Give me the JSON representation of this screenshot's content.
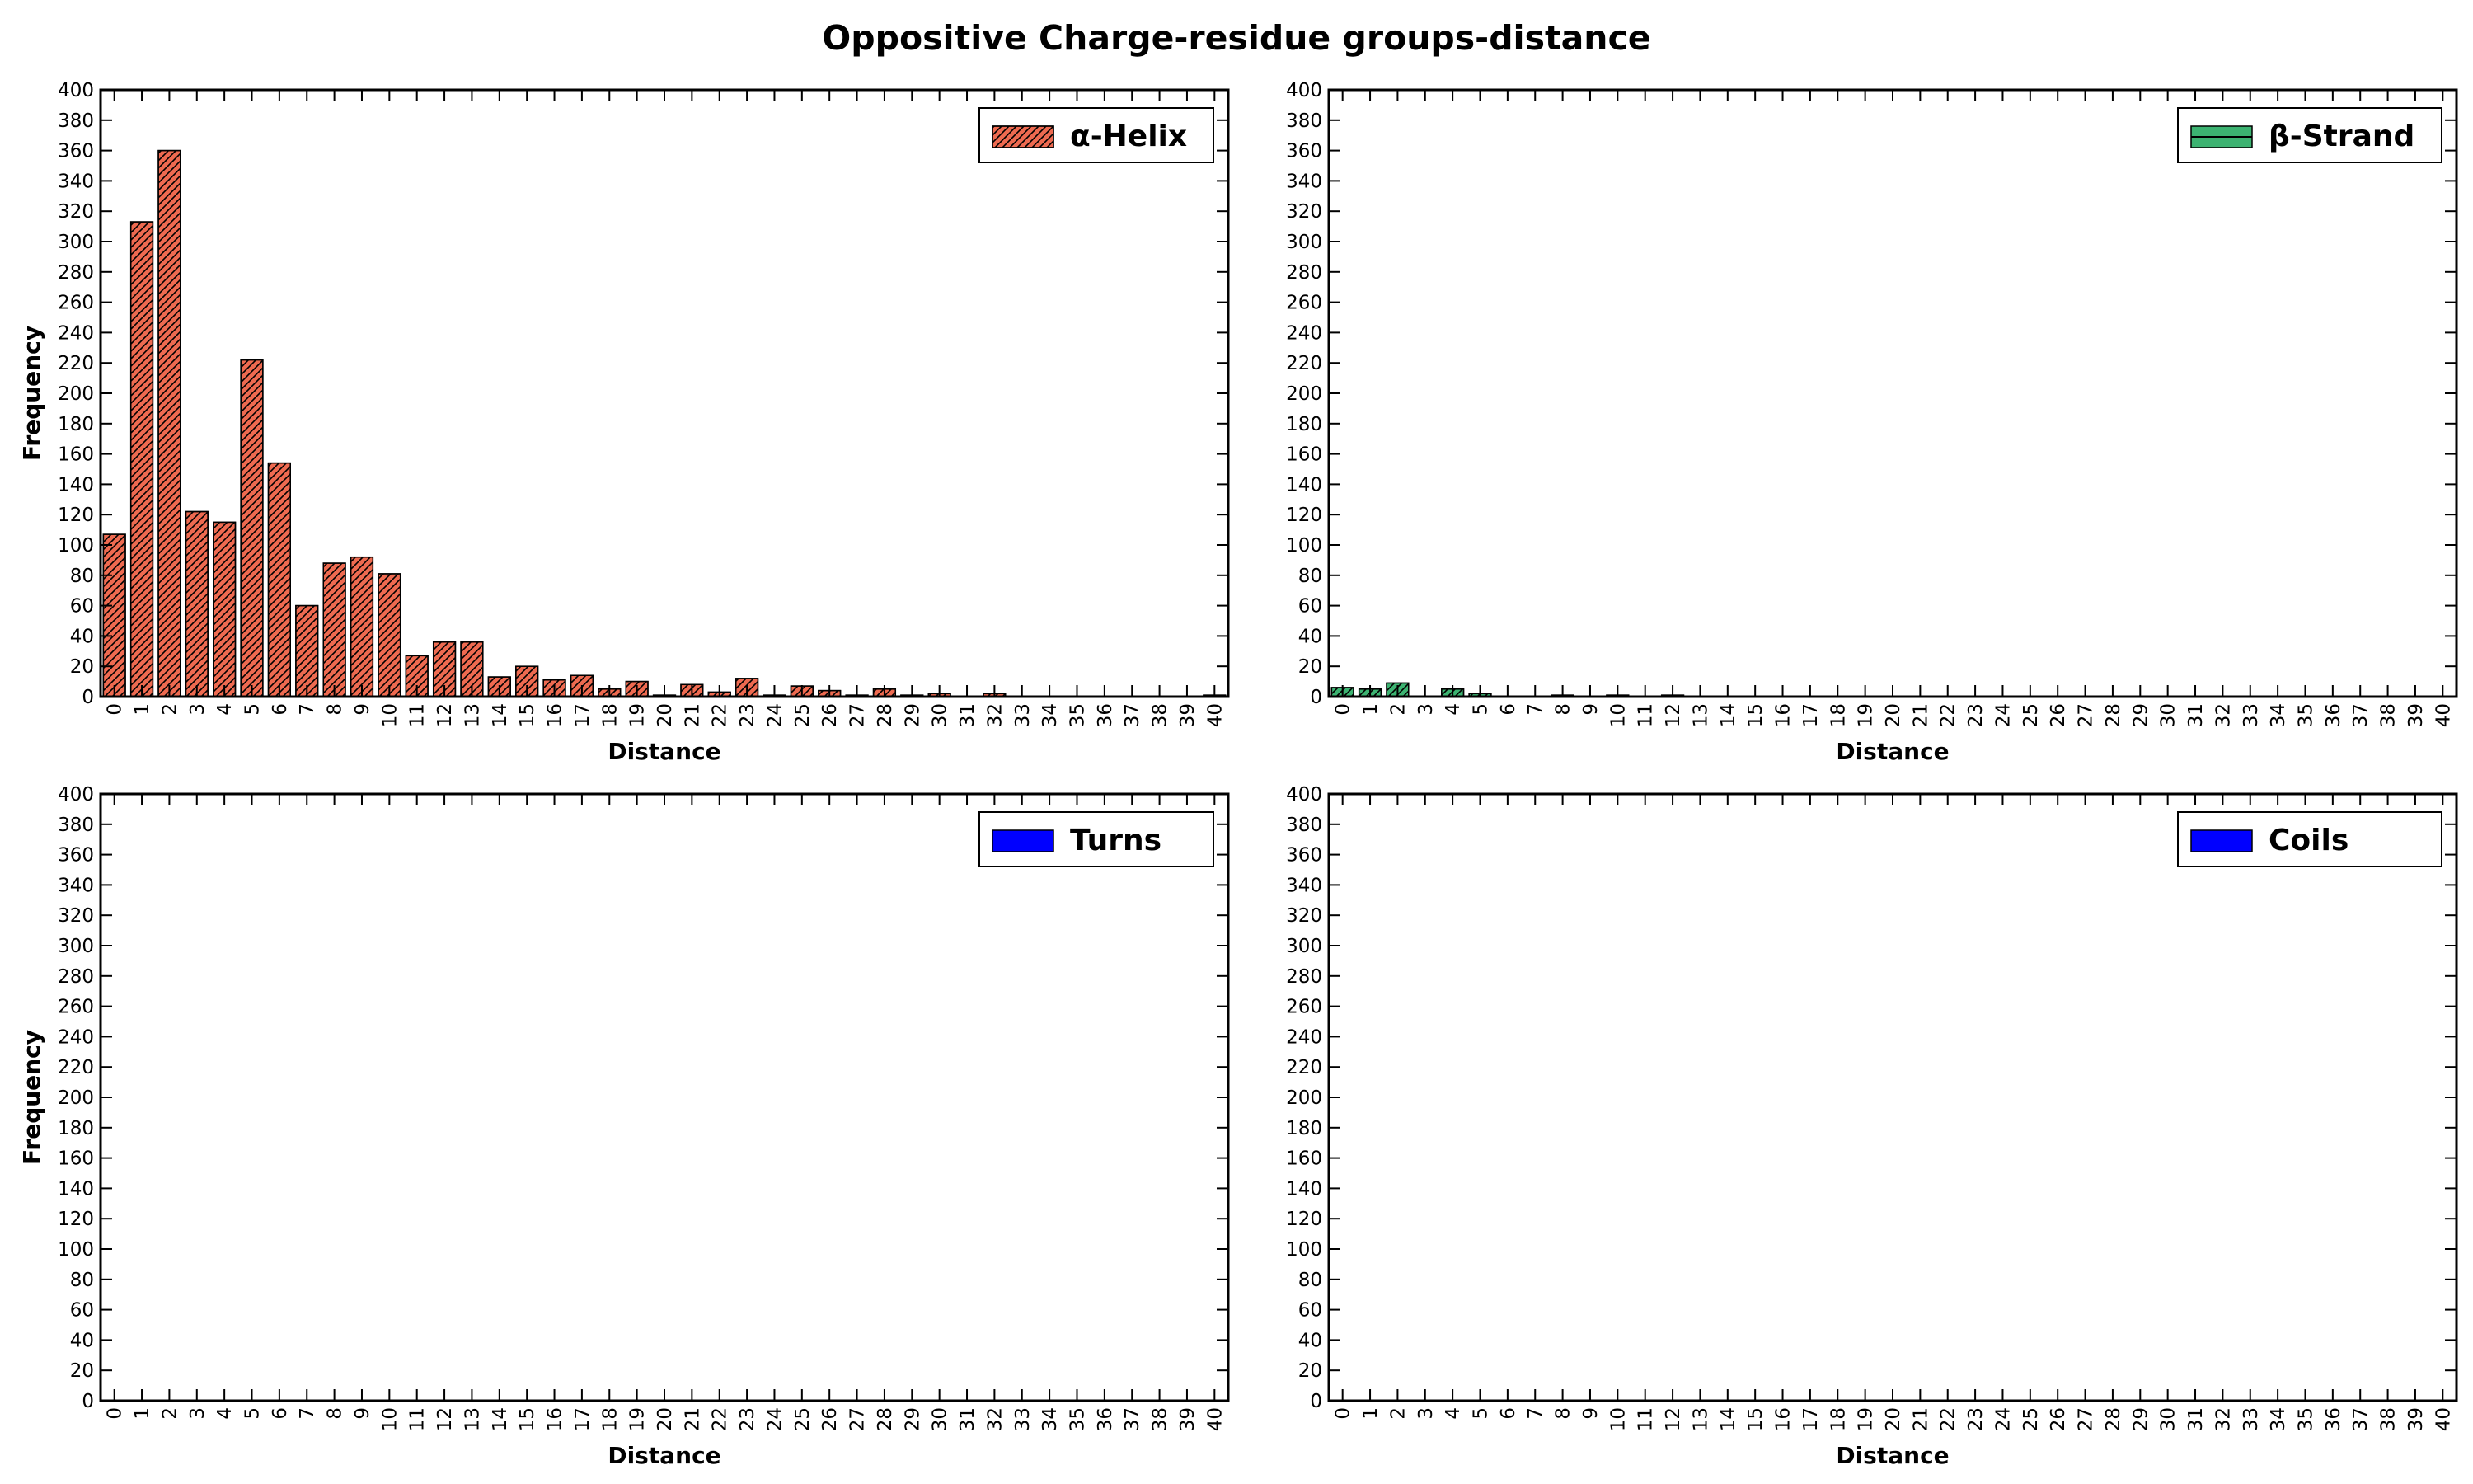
{
  "figure": {
    "title": "Oppositive Charge-residue groups-distance"
  },
  "chart_data": [
    {
      "type": "bar",
      "xlabel": "Distance",
      "ylabel": "Frequency",
      "ylim": [
        0,
        400
      ],
      "yticks": [
        0,
        20,
        40,
        60,
        80,
        100,
        120,
        140,
        160,
        180,
        200,
        220,
        240,
        260,
        280,
        300,
        320,
        340,
        360,
        380,
        400
      ],
      "categories": [
        "0",
        "1",
        "2",
        "3",
        "4",
        "5",
        "6",
        "7",
        "8",
        "9",
        "10",
        "11",
        "12",
        "13",
        "14",
        "15",
        "16",
        "17",
        "18",
        "19",
        "20",
        "21",
        "22",
        "23",
        "24",
        "25",
        "26",
        "27",
        "28",
        "29",
        "30",
        "31",
        "32",
        "33",
        "34",
        "35",
        "36",
        "37",
        "38",
        "39",
        "40"
      ],
      "legend": "top-right",
      "hatch": true,
      "series": [
        {
          "name": "α-Helix",
          "color": "#ee6a50",
          "values": [
            107,
            313,
            360,
            122,
            115,
            222,
            154,
            60,
            88,
            92,
            81,
            27,
            36,
            36,
            13,
            20,
            11,
            14,
            5,
            10,
            1,
            8,
            3,
            12,
            1,
            7,
            4,
            1,
            5,
            1,
            2,
            0,
            2,
            0,
            0,
            0,
            0,
            0,
            0,
            0,
            1
          ]
        }
      ]
    },
    {
      "type": "bar",
      "xlabel": "Distance",
      "ylabel": "Frequency",
      "ylim": [
        0,
        400
      ],
      "yticks": [
        0,
        20,
        40,
        60,
        80,
        100,
        120,
        140,
        160,
        180,
        200,
        220,
        240,
        260,
        280,
        300,
        320,
        340,
        360,
        380,
        400
      ],
      "categories": [
        "0",
        "1",
        "2",
        "3",
        "4",
        "5",
        "6",
        "7",
        "8",
        "9",
        "10",
        "11",
        "12",
        "13",
        "14",
        "15",
        "16",
        "17",
        "18",
        "19",
        "20",
        "21",
        "22",
        "23",
        "24",
        "25",
        "26",
        "27",
        "28",
        "29",
        "30",
        "31",
        "32",
        "33",
        "34",
        "35",
        "36",
        "37",
        "38",
        "39",
        "40"
      ],
      "legend": "top-right",
      "hatch": true,
      "series": [
        {
          "name": "β-Strand",
          "color": "#3cb371",
          "values": [
            6,
            5,
            9,
            0,
            5,
            2,
            0,
            0,
            1,
            0,
            1,
            0,
            1,
            0,
            0,
            0,
            0,
            0,
            0,
            0,
            0,
            0,
            0,
            0,
            0,
            0,
            0,
            0,
            0,
            0,
            0,
            0,
            0,
            0,
            0,
            0,
            0,
            0,
            0,
            0,
            0
          ]
        }
      ]
    },
    {
      "type": "bar",
      "xlabel": "Distance",
      "ylabel": "Frequency",
      "ylim": [
        0,
        400
      ],
      "yticks": [
        0,
        20,
        40,
        60,
        80,
        100,
        120,
        140,
        160,
        180,
        200,
        220,
        240,
        260,
        280,
        300,
        320,
        340,
        360,
        380,
        400
      ],
      "categories": [
        "0",
        "1",
        "2",
        "3",
        "4",
        "5",
        "6",
        "7",
        "8",
        "9",
        "10",
        "11",
        "12",
        "13",
        "14",
        "15",
        "16",
        "17",
        "18",
        "19",
        "20",
        "21",
        "22",
        "23",
        "24",
        "25",
        "26",
        "27",
        "28",
        "29",
        "30",
        "31",
        "32",
        "33",
        "34",
        "35",
        "36",
        "37",
        "38",
        "39",
        "40"
      ],
      "legend": "top-right",
      "hatch": false,
      "series": [
        {
          "name": "Turns",
          "color": "#0000ff",
          "values": [
            0,
            0,
            0,
            0,
            0,
            0,
            0,
            0,
            0,
            0,
            0,
            0,
            0,
            0,
            0,
            0,
            0,
            0,
            0,
            0,
            0,
            0,
            0,
            0,
            0,
            0,
            0,
            0,
            0,
            0,
            0,
            0,
            0,
            0,
            0,
            0,
            0,
            0,
            0,
            0,
            0
          ]
        }
      ]
    },
    {
      "type": "bar",
      "xlabel": "Distance",
      "ylabel": "Frequency",
      "ylim": [
        0,
        400
      ],
      "yticks": [
        0,
        20,
        40,
        60,
        80,
        100,
        120,
        140,
        160,
        180,
        200,
        220,
        240,
        260,
        280,
        300,
        320,
        340,
        360,
        380,
        400
      ],
      "categories": [
        "0",
        "1",
        "2",
        "3",
        "4",
        "5",
        "6",
        "7",
        "8",
        "9",
        "10",
        "11",
        "12",
        "13",
        "14",
        "15",
        "16",
        "17",
        "18",
        "19",
        "20",
        "21",
        "22",
        "23",
        "24",
        "25",
        "26",
        "27",
        "28",
        "29",
        "30",
        "31",
        "32",
        "33",
        "34",
        "35",
        "36",
        "37",
        "38",
        "39",
        "40"
      ],
      "legend": "top-right",
      "hatch": false,
      "series": [
        {
          "name": "Coils",
          "color": "#0000ff",
          "values": [
            0,
            0,
            0,
            0,
            0,
            0,
            0,
            0,
            0,
            0,
            0,
            0,
            0,
            0,
            0,
            0,
            0,
            0,
            0,
            0,
            0,
            0,
            0,
            0,
            0,
            0,
            0,
            0,
            0,
            0,
            0,
            0,
            0,
            0,
            0,
            0,
            0,
            0,
            0,
            0,
            0
          ]
        }
      ]
    }
  ]
}
